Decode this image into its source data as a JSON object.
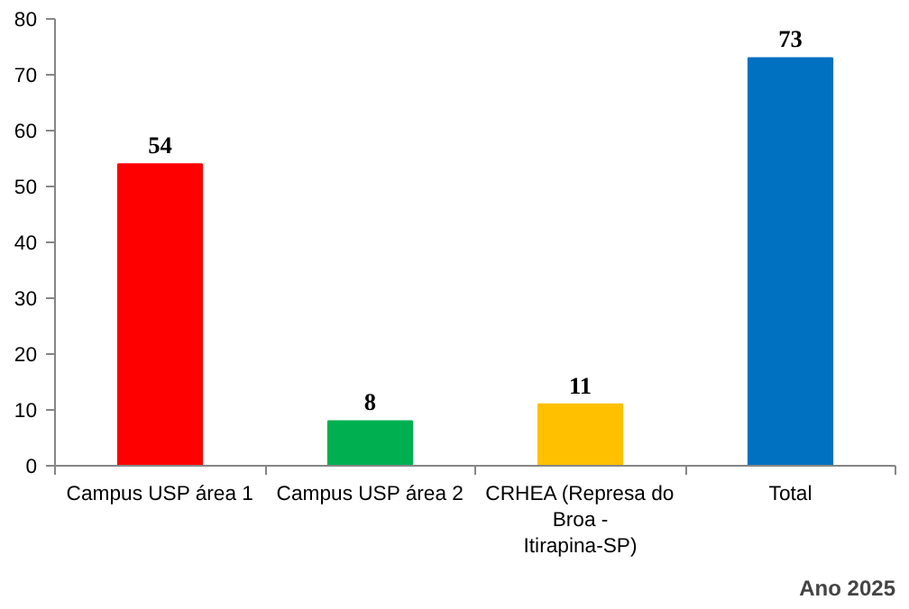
{
  "chart_data": {
    "type": "bar",
    "categories": [
      "Campus USP área 1",
      "Campus USP área 2",
      "CRHEA (Represa do Broa - Itirapina-SP)",
      "Total"
    ],
    "values": [
      54,
      8,
      11,
      73
    ],
    "colors": [
      "#ff0000",
      "#00b050",
      "#ffc000",
      "#0070c0"
    ],
    "ylim": [
      0,
      80
    ],
    "yticks": [
      0,
      10,
      20,
      30,
      40,
      50,
      60,
      70,
      80
    ],
    "grid": false,
    "data_labels": true,
    "annotations": [
      "Ano 2025"
    ]
  }
}
